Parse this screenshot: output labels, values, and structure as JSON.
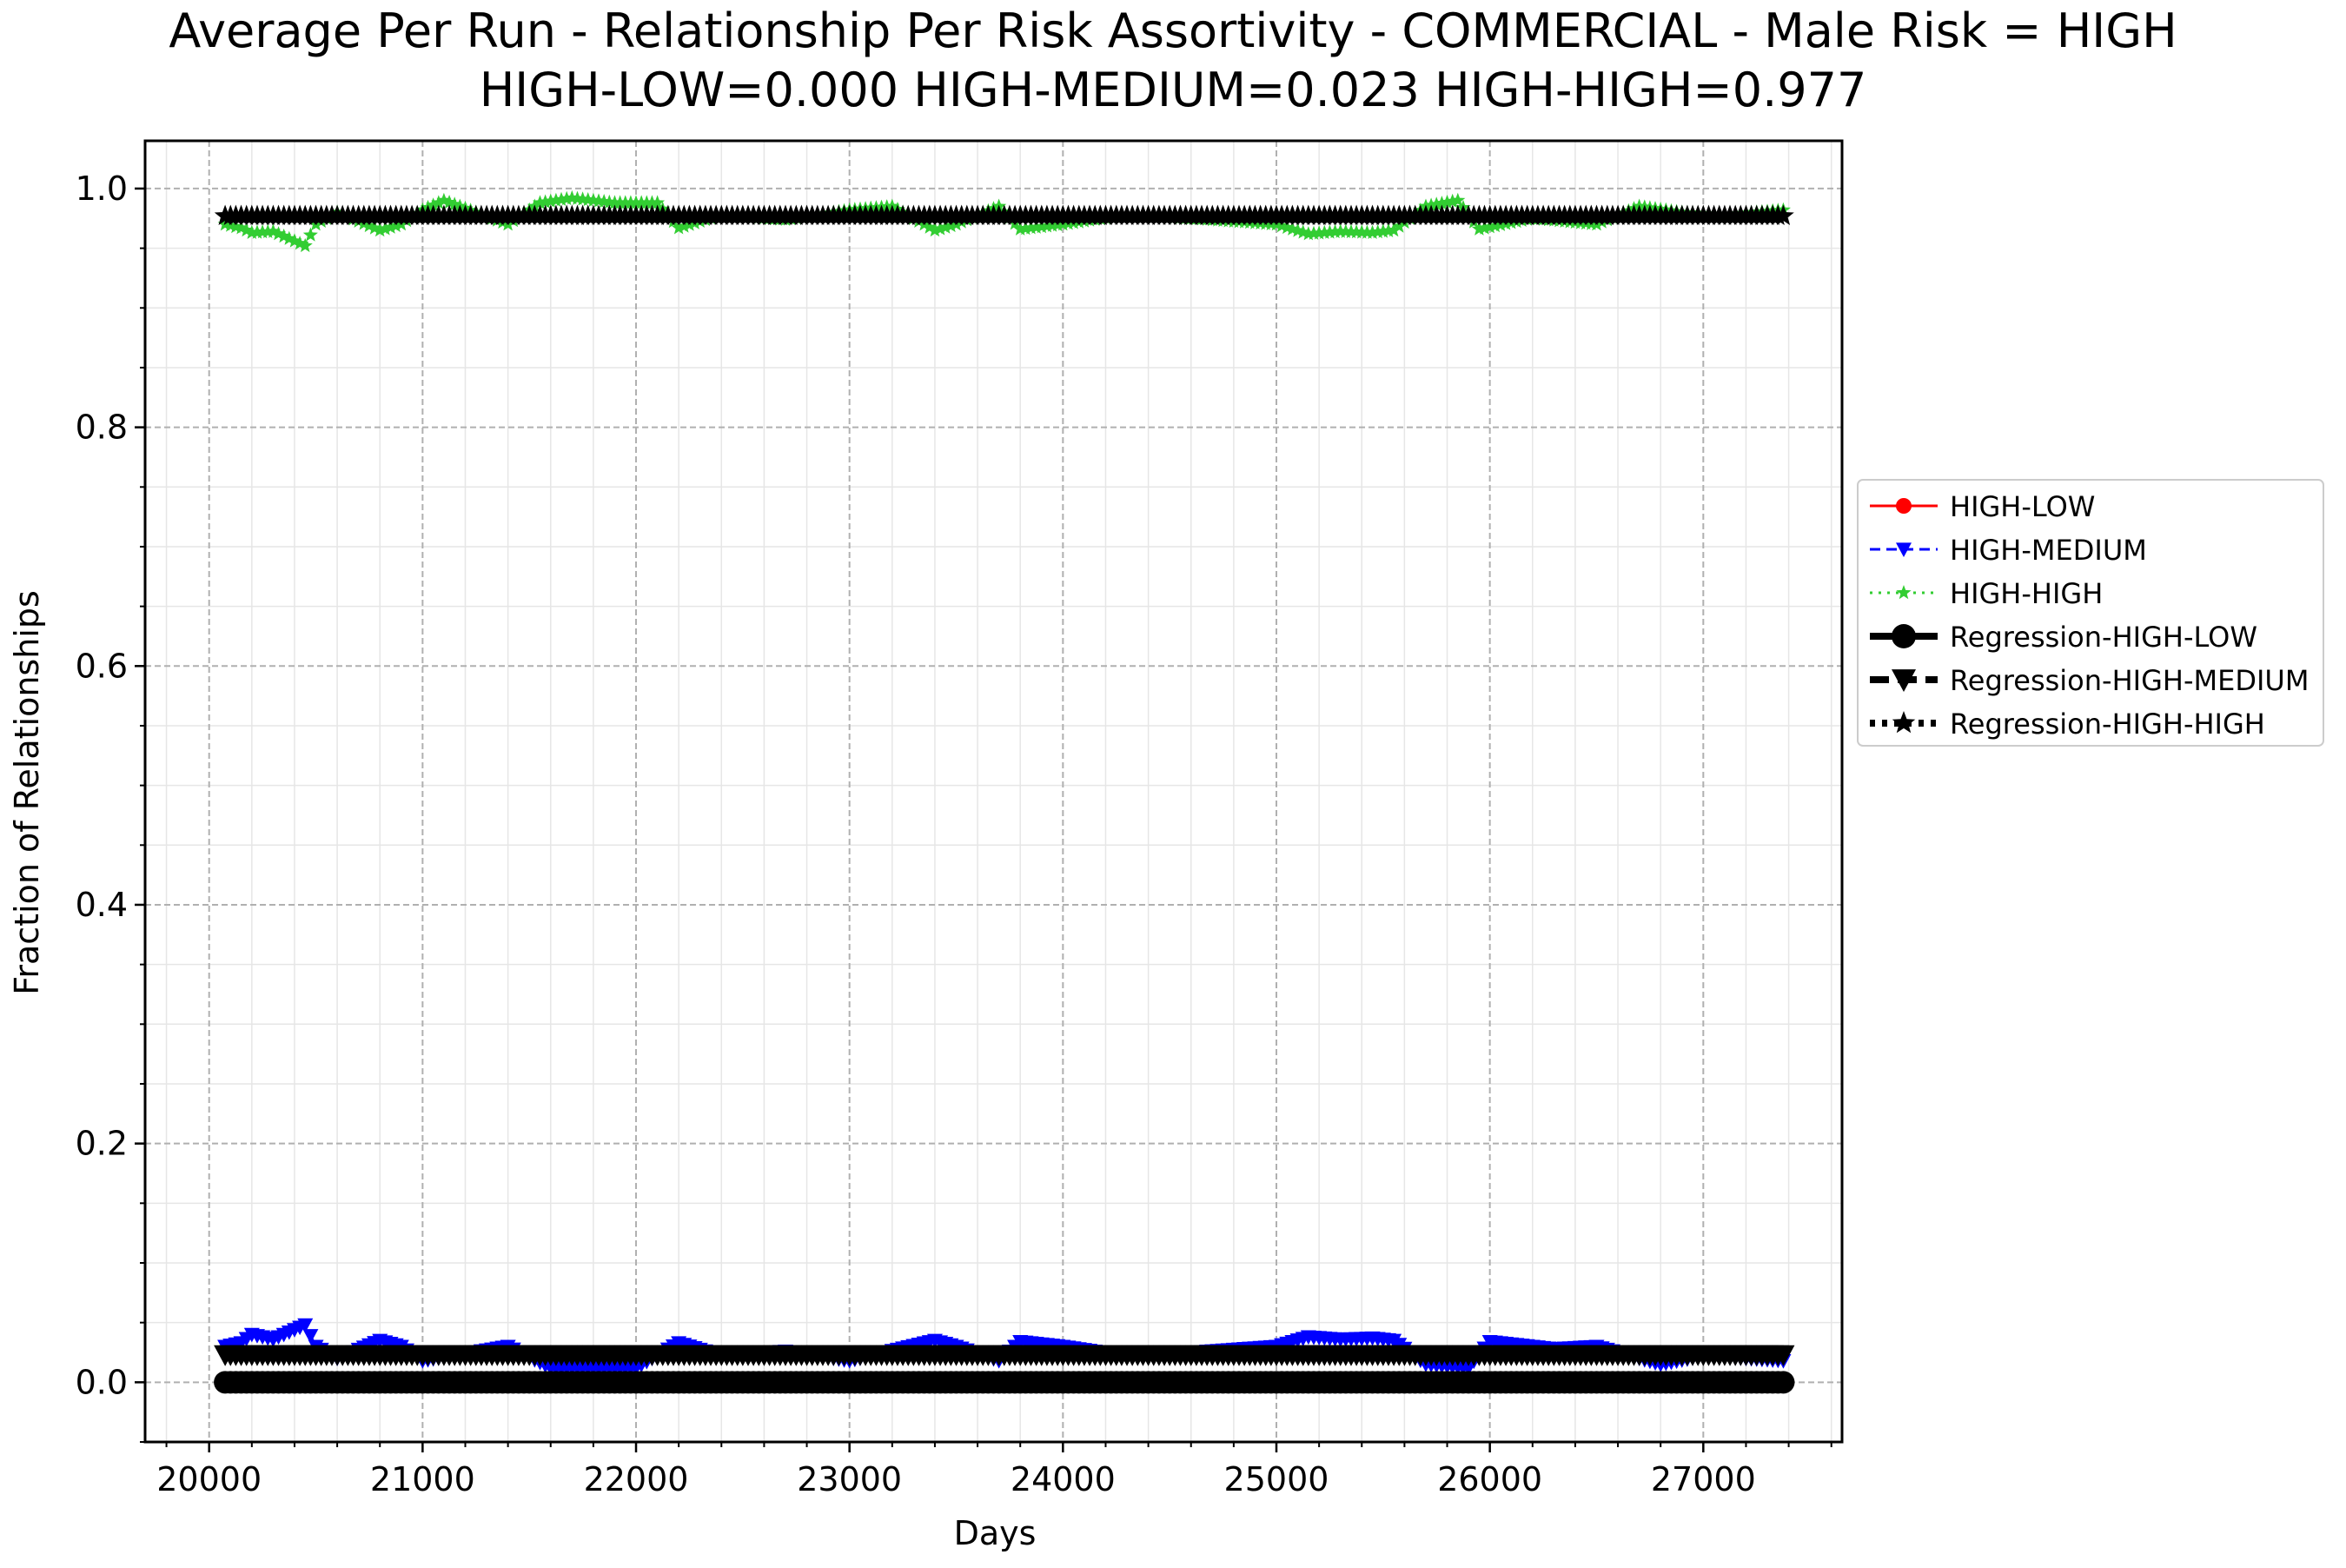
{
  "chart_data": {
    "type": "line",
    "title": "Average Per Run - Relationship Per Risk Assortivity - COMMERCIAL - Male Risk = HIGH",
    "subtitle": "HIGH-LOW=0.000 HIGH-MEDIUM=0.023 HIGH-HIGH=0.977",
    "xlabel": "Days",
    "ylabel": "Fraction of Relationships",
    "xlim": [
      19700,
      27650
    ],
    "ylim": [
      -0.05,
      1.04
    ],
    "xticks": [
      20000,
      21000,
      22000,
      23000,
      24000,
      25000,
      26000,
      27000
    ],
    "yticks": [
      0.0,
      0.2,
      0.4,
      0.6,
      0.8,
      1.0
    ],
    "xtick_labels": [
      "20000",
      "21000",
      "22000",
      "23000",
      "24000",
      "25000",
      "26000",
      "27000"
    ],
    "ytick_labels": [
      "0.0",
      "0.2",
      "0.4",
      "0.6",
      "0.8",
      "1.0"
    ],
    "grid": "major dashed, minor solid",
    "legend_position": "outside-right",
    "x_range": {
      "start": 20075,
      "end": 27375,
      "step": 25
    },
    "series": [
      {
        "name": "HIGH-LOW",
        "color": "#ff0000",
        "marker": "circle",
        "line_style": "solid",
        "values_note_constant": 0.0,
        "anchors": [
          [
            20075,
            0.0
          ],
          [
            27375,
            0.0
          ]
        ]
      },
      {
        "name": "HIGH-MEDIUM",
        "color": "#0000ff",
        "marker": "triangle-down",
        "line_style": "dashed",
        "anchors": [
          [
            20075,
            0.03
          ],
          [
            20150,
            0.033
          ],
          [
            20200,
            0.04
          ],
          [
            20300,
            0.036
          ],
          [
            20375,
            0.042
          ],
          [
            20450,
            0.048
          ],
          [
            20500,
            0.03
          ],
          [
            20600,
            0.02
          ],
          [
            20800,
            0.035
          ],
          [
            20900,
            0.03
          ],
          [
            21000,
            0.018
          ],
          [
            21400,
            0.03
          ],
          [
            21600,
            0.012
          ],
          [
            22000,
            0.012
          ],
          [
            22200,
            0.033
          ],
          [
            22400,
            0.022
          ],
          [
            22700,
            0.026
          ],
          [
            23000,
            0.018
          ],
          [
            23400,
            0.035
          ],
          [
            23500,
            0.03
          ],
          [
            23700,
            0.018
          ],
          [
            23800,
            0.034
          ],
          [
            24000,
            0.03
          ],
          [
            24300,
            0.022
          ],
          [
            24600,
            0.025
          ],
          [
            25000,
            0.03
          ],
          [
            25150,
            0.038
          ],
          [
            25300,
            0.036
          ],
          [
            25450,
            0.037
          ],
          [
            25550,
            0.035
          ],
          [
            25700,
            0.015
          ],
          [
            25900,
            0.012
          ],
          [
            26000,
            0.034
          ],
          [
            26300,
            0.028
          ],
          [
            26500,
            0.03
          ],
          [
            26800,
            0.015
          ],
          [
            27000,
            0.022
          ],
          [
            27375,
            0.018
          ]
        ]
      },
      {
        "name": "HIGH-HIGH",
        "color": "#32cd32",
        "marker": "star",
        "line_style": "dotted",
        "anchors": [
          [
            20075,
            0.97
          ],
          [
            20150,
            0.967
          ],
          [
            20200,
            0.963
          ],
          [
            20300,
            0.964
          ],
          [
            20375,
            0.958
          ],
          [
            20450,
            0.952
          ],
          [
            20500,
            0.97
          ],
          [
            20600,
            0.98
          ],
          [
            20800,
            0.965
          ],
          [
            20900,
            0.97
          ],
          [
            21000,
            0.982
          ],
          [
            21100,
            0.99
          ],
          [
            21400,
            0.97
          ],
          [
            21550,
            0.988
          ],
          [
            21700,
            0.992
          ],
          [
            21900,
            0.988
          ],
          [
            22100,
            0.988
          ],
          [
            22200,
            0.967
          ],
          [
            22400,
            0.978
          ],
          [
            22700,
            0.974
          ],
          [
            23000,
            0.982
          ],
          [
            23200,
            0.985
          ],
          [
            23400,
            0.965
          ],
          [
            23500,
            0.97
          ],
          [
            23700,
            0.985
          ],
          [
            23800,
            0.966
          ],
          [
            24000,
            0.97
          ],
          [
            24300,
            0.978
          ],
          [
            24600,
            0.975
          ],
          [
            25000,
            0.97
          ],
          [
            25150,
            0.962
          ],
          [
            25300,
            0.964
          ],
          [
            25450,
            0.963
          ],
          [
            25550,
            0.965
          ],
          [
            25700,
            0.985
          ],
          [
            25850,
            0.99
          ],
          [
            25950,
            0.966
          ],
          [
            26200,
            0.975
          ],
          [
            26500,
            0.97
          ],
          [
            26700,
            0.985
          ],
          [
            26900,
            0.98
          ],
          [
            27100,
            0.978
          ],
          [
            27375,
            0.982
          ]
        ]
      },
      {
        "name": "Regression-HIGH-LOW",
        "color": "#000000",
        "marker": "circle",
        "line_style": "solid",
        "anchors": [
          [
            20075,
            0.0
          ],
          [
            27375,
            0.0
          ]
        ]
      },
      {
        "name": "Regression-HIGH-MEDIUM",
        "color": "#000000",
        "marker": "triangle-down",
        "line_style": "dashed",
        "anchors": [
          [
            20075,
            0.023
          ],
          [
            27375,
            0.023
          ]
        ]
      },
      {
        "name": "Regression-HIGH-HIGH",
        "color": "#000000",
        "marker": "star",
        "line_style": "dotted",
        "anchors": [
          [
            20075,
            0.977
          ],
          [
            27375,
            0.977
          ]
        ]
      }
    ]
  }
}
